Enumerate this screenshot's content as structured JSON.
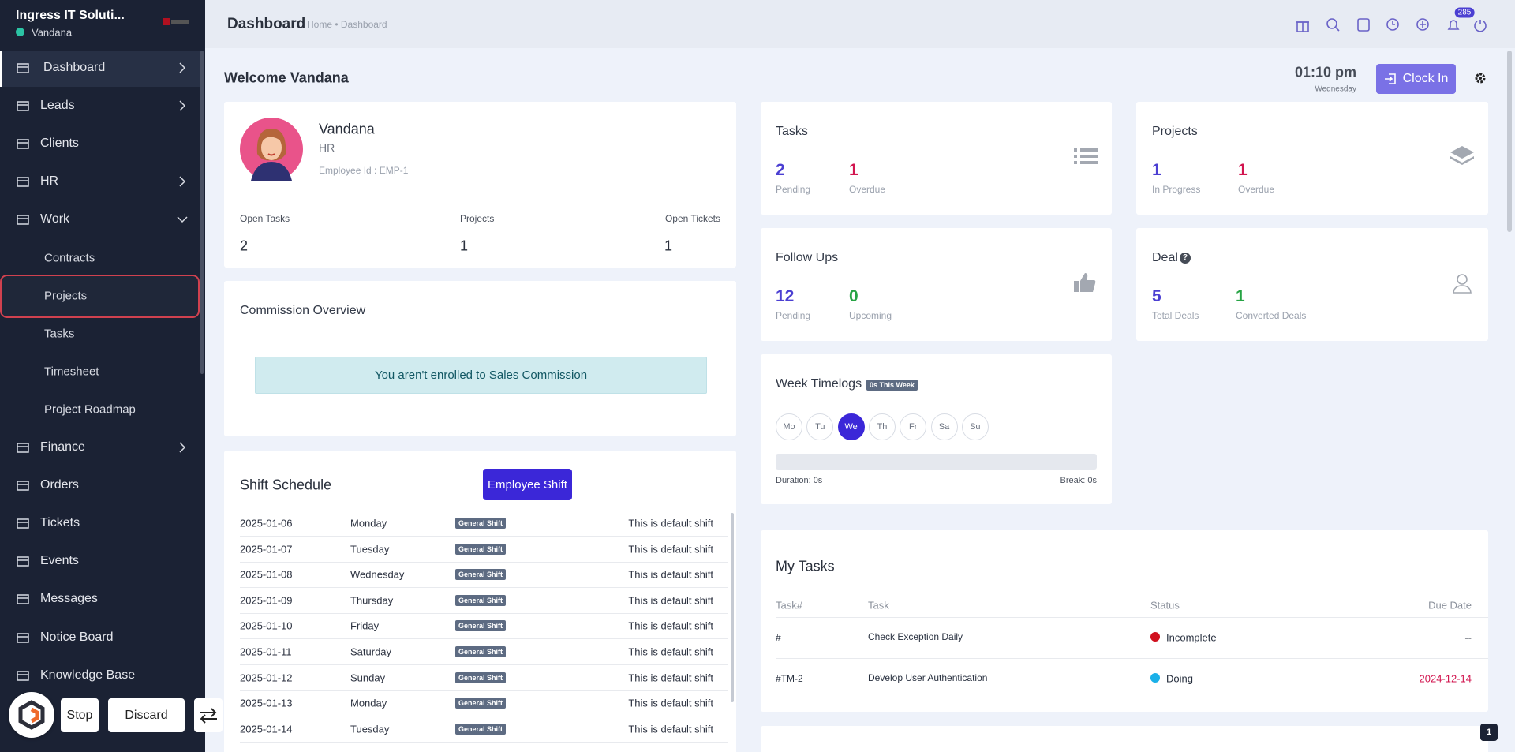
{
  "sidebar": {
    "company": "Ingress IT Soluti...",
    "user": "Vandana",
    "menu": [
      "Dashboard",
      "Leads",
      "Clients",
      "HR",
      "Work",
      "Contracts",
      "Projects",
      "Tasks",
      "Timesheet",
      "Project Roadmap",
      "Finance",
      "Orders",
      "Tickets",
      "Events",
      "Messages",
      "Notice Board",
      "Knowledge Base"
    ]
  },
  "recorder": {
    "stop": "Stop",
    "discard": "Discard"
  },
  "topbar": {
    "title": "Dashboard",
    "breadcrumb": "Home • Dashboard",
    "notification_count": "285"
  },
  "welcome": "Welcome Vandana",
  "clock": {
    "time": "01:10 pm",
    "day": "Wednesday",
    "button": "Clock In"
  },
  "profile": {
    "name": "Vandana",
    "role": "HR",
    "employee_id": "Employee Id : EMP-1",
    "stats": [
      {
        "label": "Open Tasks",
        "value": "2"
      },
      {
        "label": "Projects",
        "value": "1"
      },
      {
        "label": "Open Tickets",
        "value": "1"
      }
    ]
  },
  "commission": {
    "title": "Commission Overview",
    "message": "You aren't enrolled to Sales Commission"
  },
  "shift_schedule": {
    "title": "Shift Schedule",
    "button": "Employee Shift",
    "rows": [
      [
        "2025-01-06",
        "Monday",
        "General Shift",
        "This is default shift"
      ],
      [
        "2025-01-07",
        "Tuesday",
        "General Shift",
        "This is default shift"
      ],
      [
        "2025-01-08",
        "Wednesday",
        "General Shift",
        "This is default shift"
      ],
      [
        "2025-01-09",
        "Thursday",
        "General Shift",
        "This is default shift"
      ],
      [
        "2025-01-10",
        "Friday",
        "General Shift",
        "This is default shift"
      ],
      [
        "2025-01-11",
        "Saturday",
        "General Shift",
        "This is default shift"
      ],
      [
        "2025-01-12",
        "Sunday",
        "General Shift",
        "This is default shift"
      ],
      [
        "2025-01-13",
        "Monday",
        "General Shift",
        "This is default shift"
      ],
      [
        "2025-01-14",
        "Tuesday",
        "General Shift",
        "This is default shift"
      ]
    ]
  },
  "tasks_card": {
    "title": "Tasks",
    "stats": [
      {
        "value": "2",
        "label": "Pending"
      },
      {
        "value": "1",
        "label": "Overdue"
      }
    ]
  },
  "projects_card": {
    "title": "Projects",
    "stats": [
      {
        "value": "1",
        "label": "In Progress"
      },
      {
        "value": "1",
        "label": "Overdue"
      }
    ]
  },
  "followups_card": {
    "title": "Follow Ups",
    "stats": [
      {
        "value": "12",
        "label": "Pending"
      },
      {
        "value": "0",
        "label": "Upcoming"
      }
    ]
  },
  "deal_card": {
    "title": "Deal",
    "stats": [
      {
        "value": "5",
        "label": "Total Deals"
      },
      {
        "value": "1",
        "label": "Converted Deals"
      }
    ]
  },
  "week_timelogs": {
    "title": "Week Timelogs",
    "badge": "0s This Week",
    "days": [
      "Mo",
      "Tu",
      "We",
      "Th",
      "Fr",
      "Sa",
      "Su"
    ],
    "duration": "Duration: 0s",
    "break": "Break: 0s"
  },
  "my_tasks": {
    "title": "My Tasks",
    "columns": [
      "Task#",
      "Task",
      "Status",
      "Due Date"
    ],
    "rows": [
      [
        "#",
        "Check Exception Daily",
        "Incomplete",
        "--"
      ],
      [
        "#TM-2",
        "Develop User Authentication",
        "Doing",
        "2024-12-14"
      ]
    ]
  },
  "page_badge": "1"
}
